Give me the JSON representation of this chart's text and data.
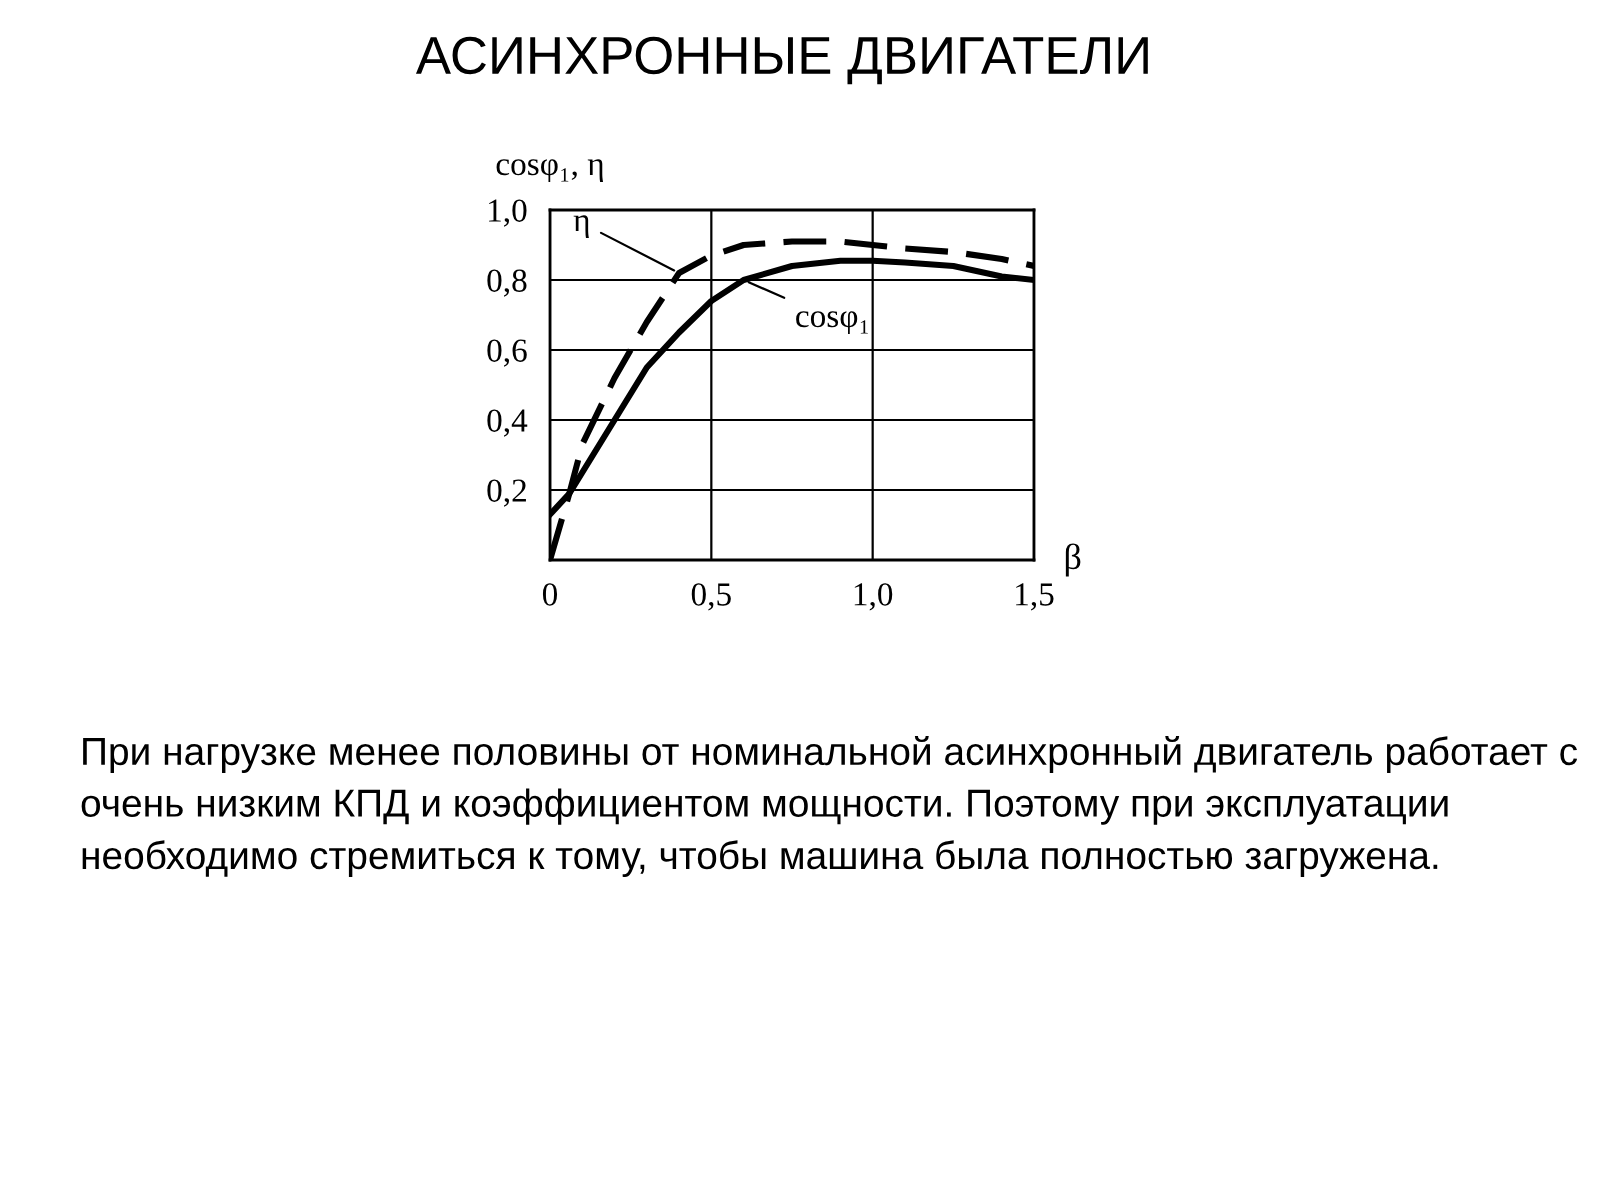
{
  "chart_data": {
    "type": "line",
    "title": "АСИНХРОННЫЕ ДВИГАТЕЛИ",
    "xlabel": "β",
    "ylabel": "cosφ₁, η",
    "series": [
      {
        "name": "η",
        "color": "#000000",
        "line_style": "dashed",
        "x": [
          0,
          0.06,
          0.1,
          0.2,
          0.25,
          0.3,
          0.4,
          0.5,
          0.6,
          0.75,
          0.9,
          1.0,
          1.1,
          1.25,
          1.4,
          1.5
        ],
        "values": [
          0,
          0.19,
          0.33,
          0.52,
          0.6,
          0.68,
          0.82,
          0.87,
          0.9,
          0.91,
          0.91,
          0.9,
          0.89,
          0.88,
          0.86,
          0.84
        ]
      },
      {
        "name": "cosφ₁",
        "color": "#000000",
        "line_style": "solid",
        "x": [
          0,
          0.06,
          0.1,
          0.2,
          0.3,
          0.4,
          0.5,
          0.6,
          0.75,
          0.9,
          1.0,
          1.1,
          1.25,
          1.4,
          1.5
        ],
        "values": [
          0.13,
          0.19,
          0.25,
          0.4,
          0.55,
          0.65,
          0.74,
          0.8,
          0.84,
          0.855,
          0.855,
          0.85,
          0.84,
          0.81,
          0.8
        ]
      }
    ],
    "xlim": [
      0,
      1.5
    ],
    "ylim": [
      0,
      1.0
    ],
    "xticks": [
      {
        "value": 0,
        "label": "0"
      },
      {
        "value": 0.5,
        "label": "0,5"
      },
      {
        "value": 1.0,
        "label": "1,0"
      },
      {
        "value": 1.5,
        "label": "1,5"
      }
    ],
    "yticks": [
      {
        "value": 0.2,
        "label": "0,2"
      },
      {
        "value": 0.4,
        "label": "0,4"
      },
      {
        "value": 0.6,
        "label": "0,6"
      },
      {
        "value": 0.8,
        "label": "0,8"
      },
      {
        "value": 1.0,
        "label": "1,0"
      }
    ],
    "grid": true,
    "marker": "none",
    "annotations": [
      "При нагрузке менее половины от номинальной асинхронный двигатель работает с очень низким КПД и коэффициентом мощности. Поэтому при эксплуатации необходимо стремиться к тому, чтобы машина была полностью загружена."
    ]
  }
}
